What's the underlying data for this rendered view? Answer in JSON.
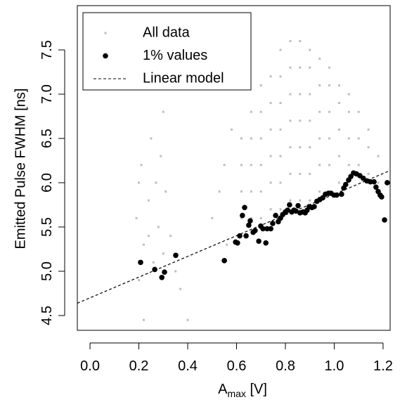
{
  "chart_data": {
    "type": "scatter",
    "x_label": [
      "A",
      "max",
      " [V]"
    ],
    "y_label": "Emitted Pulse FWHM [ns]",
    "xlim": [
      -0.052,
      1.229
    ],
    "ylim": [
      4.333,
      8.0
    ],
    "xticks": [
      {
        "value": 0,
        "label": "0.0"
      },
      0.2,
      0.4,
      0.6,
      0.8,
      {
        "value": 1,
        "label": "1.0"
      },
      1.2
    ],
    "yticks": [
      4.5,
      {
        "value": 5,
        "label": "5.0"
      },
      5.5,
      {
        "value": 6,
        "label": "6.0"
      },
      6.5,
      {
        "value": 7,
        "label": "7.0"
      },
      7.5
    ],
    "legend": "top-left",
    "series": [
      {
        "name": "All data",
        "color": "#bebebe",
        "x": [
          0.19,
          0.2,
          0.21,
          0.22,
          0.24,
          0.25,
          0.26,
          0.27,
          0.28,
          0.29,
          0.3,
          0.31,
          0.33,
          0.35,
          0.37,
          0.4,
          0.22,
          0.3,
          0.2,
          0.24,
          0.5,
          0.53,
          0.55,
          0.56,
          0.58,
          0.62,
          0.62,
          0.62,
          0.62,
          0.66,
          0.66,
          0.66,
          0.66,
          0.66,
          0.7,
          0.7,
          0.7,
          0.7,
          0.7,
          0.7,
          0.74,
          0.74,
          0.74,
          0.74,
          0.74,
          0.74,
          0.78,
          0.78,
          0.78,
          0.78,
          0.78,
          0.78,
          0.78,
          0.82,
          0.82,
          0.82,
          0.82,
          0.82,
          0.82,
          0.82,
          0.86,
          0.86,
          0.86,
          0.86,
          0.86,
          0.86,
          0.86,
          0.9,
          0.9,
          0.9,
          0.9,
          0.9,
          0.9,
          0.9,
          0.94,
          0.94,
          0.94,
          0.94,
          0.94,
          0.94,
          0.98,
          0.98,
          0.98,
          0.98,
          0.98,
          0.98,
          1.02,
          1.02,
          1.02,
          1.02,
          1.02,
          1.06,
          1.06,
          1.06,
          1.06,
          1.1,
          1.1,
          1.1,
          1.14,
          1.14,
          1.14,
          1.18,
          1.18
        ],
        "values": [
          5.6,
          4.9,
          6.2,
          5.3,
          5.8,
          6.5,
          5.1,
          6.0,
          5.5,
          6.3,
          5.2,
          5.9,
          5.4,
          5.0,
          4.8,
          4.45,
          4.45,
          6.8,
          6.0,
          5.4,
          5.6,
          5.9,
          6.2,
          5.3,
          6.6,
          5.6,
          5.9,
          6.2,
          6.5,
          5.6,
          5.9,
          6.2,
          6.5,
          6.8,
          5.6,
          5.9,
          6.2,
          6.5,
          6.8,
          7.1,
          5.7,
          6.0,
          6.3,
          6.6,
          6.9,
          7.2,
          5.7,
          6.0,
          6.3,
          6.6,
          6.9,
          7.2,
          7.5,
          5.8,
          6.1,
          6.4,
          6.7,
          7.0,
          7.3,
          7.6,
          5.8,
          6.1,
          6.4,
          6.7,
          7.0,
          7.3,
          7.6,
          5.8,
          6.1,
          6.4,
          6.7,
          7.0,
          7.3,
          7.5,
          5.9,
          6.2,
          6.5,
          6.8,
          7.1,
          7.4,
          5.9,
          6.2,
          6.5,
          6.8,
          7.1,
          7.3,
          6.0,
          6.3,
          6.6,
          6.9,
          7.1,
          6.2,
          6.5,
          6.8,
          7.0,
          6.2,
          6.5,
          6.8,
          6.1,
          6.4,
          6.6,
          6.0,
          6.3
        ]
      },
      {
        "name": "1% values",
        "color": "#000000",
        "x": [
          0.207,
          0.265,
          0.294,
          0.305,
          0.351,
          0.55,
          0.596,
          0.604,
          0.613,
          0.624,
          0.633,
          0.639,
          0.65,
          0.656,
          0.668,
          0.676,
          0.691,
          0.699,
          0.708,
          0.72,
          0.725,
          0.74,
          0.748,
          0.76,
          0.771,
          0.78,
          0.789,
          0.8,
          0.809,
          0.817,
          0.826,
          0.835,
          0.843,
          0.852,
          0.86,
          0.872,
          0.881,
          0.889,
          0.898,
          0.909,
          0.918,
          0.929,
          0.941,
          0.953,
          0.964,
          0.976,
          0.987,
          0.999,
          1.01,
          1.03,
          1.039,
          1.047,
          1.059,
          1.068,
          1.079,
          1.091,
          1.105,
          1.119,
          1.134,
          1.148,
          1.163,
          1.171,
          1.18,
          1.188,
          1.194,
          1.206,
          1.217
        ],
        "values": [
          5.1,
          5.02,
          4.93,
          4.99,
          5.18,
          5.12,
          5.33,
          5.32,
          5.4,
          5.63,
          5.72,
          5.4,
          5.52,
          5.57,
          5.44,
          5.46,
          5.34,
          5.51,
          5.48,
          5.32,
          5.48,
          5.48,
          5.54,
          5.63,
          5.56,
          5.6,
          5.64,
          5.67,
          5.69,
          5.75,
          5.67,
          5.69,
          5.68,
          5.74,
          5.66,
          5.67,
          5.66,
          5.69,
          5.73,
          5.72,
          5.73,
          5.79,
          5.81,
          5.83,
          5.87,
          5.88,
          5.88,
          5.86,
          5.86,
          5.87,
          5.94,
          5.98,
          6.03,
          6.07,
          6.11,
          6.1,
          6.08,
          6.05,
          6.02,
          6.01,
          6.01,
          5.95,
          5.9,
          5.86,
          5.84,
          5.58,
          6.0
        ]
      },
      {
        "name": "Linear model",
        "color": "#000000",
        "intercept": 4.7,
        "slope": 1.17,
        "dashed": true
      }
    ]
  }
}
